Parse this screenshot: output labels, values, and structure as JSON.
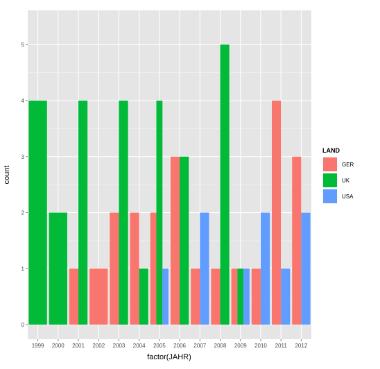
{
  "chart_data": {
    "type": "bar",
    "position": "dodge",
    "xlabel": "factor(JAHR)",
    "ylabel": "count",
    "ylim": [
      0,
      5.5
    ],
    "y_ticks": [
      "0",
      "1",
      "2",
      "3",
      "4",
      "5"
    ],
    "categories": [
      "1999",
      "2000",
      "2001",
      "2002",
      "2003",
      "2004",
      "2005",
      "2006",
      "2007",
      "2008",
      "2009",
      "2010",
      "2011",
      "2012"
    ],
    "grid": true,
    "legend": {
      "title": "LAND",
      "position": "right",
      "entries": [
        {
          "label": "GER",
          "color": "#F8766D"
        },
        {
          "label": "UK",
          "color": "#00BA38"
        },
        {
          "label": "USA",
          "color": "#619CFF"
        }
      ]
    },
    "series": [
      {
        "name": "GER",
        "color": "#F8766D",
        "values": [
          0,
          0,
          1,
          1,
          2,
          2,
          2,
          3,
          1,
          1,
          1,
          1,
          4,
          3
        ]
      },
      {
        "name": "UK",
        "color": "#00BA38",
        "values": [
          4,
          2,
          4,
          0,
          4,
          1,
          4,
          3,
          0,
          5,
          1,
          0,
          0,
          0
        ]
      },
      {
        "name": "USA",
        "color": "#619CFF",
        "values": [
          0,
          0,
          0,
          0,
          0,
          0,
          1,
          0,
          2,
          0,
          1,
          2,
          1,
          2
        ]
      }
    ],
    "panel_background": "#E5E5E5",
    "grid_color": "#FFFFFF"
  }
}
